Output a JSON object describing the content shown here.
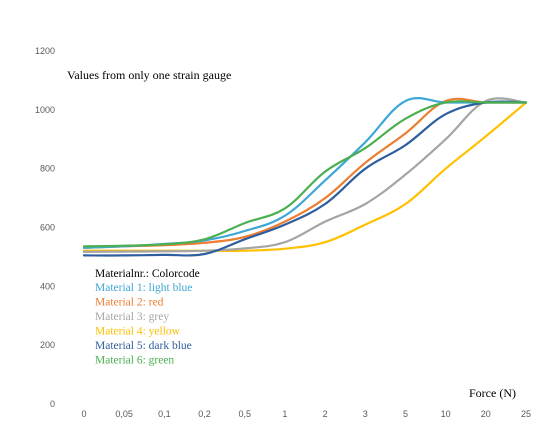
{
  "chart_data": {
    "type": "line",
    "annotation": "Values from only one strain gauge",
    "xlabel": "Force (N)",
    "ylabel": "",
    "categories": [
      "0",
      "0,05",
      "0,1",
      "0,2",
      "0,5",
      "1",
      "2",
      "3",
      "5",
      "10",
      "20",
      "25"
    ],
    "ylim": [
      0,
      1200
    ],
    "yticks": [
      0,
      200,
      400,
      600,
      800,
      1000,
      1200
    ],
    "grid": false,
    "legend": {
      "title": "Materialnr.: Colorcode",
      "placement": "bottom-left",
      "items": [
        "Material 1: light blue",
        "Material 2: red",
        "Material 3: grey",
        "Material 4: yellow",
        "Material 5: dark blue",
        "Material 6: green"
      ]
    },
    "series": [
      {
        "name": "Material 1: light blue",
        "color": "#3FA7D6",
        "values": [
          531,
          536,
          544,
          556,
          588,
          640,
          760,
          890,
          1030,
          1025,
          1025,
          1025
        ]
      },
      {
        "name": "Material 2: red",
        "color": "#ED7D31",
        "values": [
          531,
          536,
          540,
          548,
          568,
          620,
          700,
          820,
          920,
          1030,
          1025,
          1025
        ]
      },
      {
        "name": "Material 3: grey",
        "color": "#A5A5A5",
        "values": [
          517,
          518,
          519,
          521,
          529,
          550,
          620,
          680,
          780,
          900,
          1030,
          1025
        ]
      },
      {
        "name": "Material 4: yellow",
        "color": "#FFC000",
        "values": [
          521,
          521,
          521,
          521,
          521,
          528,
          550,
          610,
          680,
          800,
          910,
          1025
        ]
      },
      {
        "name": "Material 5: dark blue",
        "color": "#2E5E9E",
        "values": [
          505,
          505,
          507,
          510,
          560,
          610,
          680,
          800,
          880,
          985,
          1025,
          1025
        ]
      },
      {
        "name": "Material 6: green",
        "color": "#4CAF50",
        "values": [
          536,
          538,
          543,
          560,
          615,
          665,
          790,
          870,
          970,
          1025,
          1025,
          1025
        ]
      }
    ]
  }
}
